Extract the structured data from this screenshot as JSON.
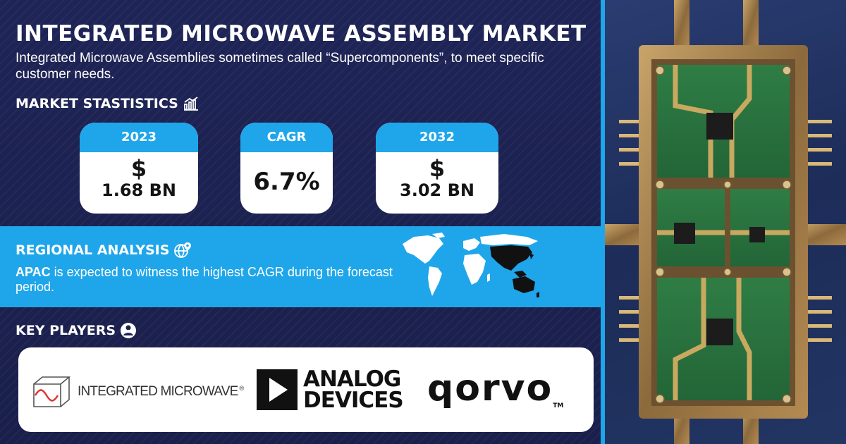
{
  "header": {
    "title": "INTEGRATED MICROWAVE ASSEMBLY MARKET",
    "subtitle": "Integrated Microwave Assemblies sometimes called “Supercomponents”, to meet specific customer needs."
  },
  "market_statistics": {
    "heading": "MARKET STASTISTICS",
    "icon": "chart-growth-icon",
    "cards": [
      {
        "label": "2023",
        "currency": "$",
        "value": "1.68 BN"
      },
      {
        "label": "CAGR",
        "value": "6.7%"
      },
      {
        "label": "2032",
        "currency": "$",
        "value": "3.02 BN"
      }
    ]
  },
  "regional_analysis": {
    "heading": "REGIONAL ANALYSIS",
    "icon": "globe-pin-icon",
    "highlight": "APAC",
    "text": " is expected to witness the highest CAGR during the forecast period."
  },
  "key_players": {
    "heading": "KEY PLAYERS",
    "icon": "person-bulb-icon",
    "logos": [
      {
        "name": "INTEGRATED MICROWAVE",
        "mark": "®"
      },
      {
        "line1": "ANALOG",
        "line2": "DEVICES"
      },
      {
        "name": "qorvo",
        "mark": "TM"
      }
    ]
  },
  "colors": {
    "background": "#1b2150",
    "accent": "#1fa6ea",
    "card": "#ffffff"
  }
}
